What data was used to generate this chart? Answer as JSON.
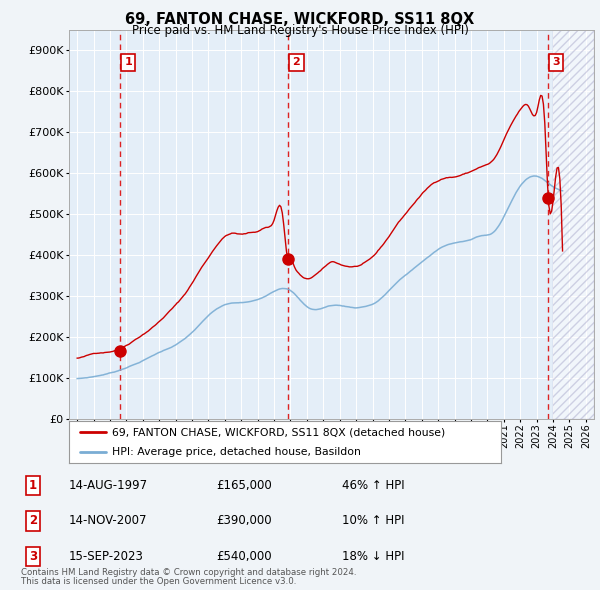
{
  "title": "69, FANTON CHASE, WICKFORD, SS11 8QX",
  "subtitle": "Price paid vs. HM Land Registry's House Price Index (HPI)",
  "legend_line1": "69, FANTON CHASE, WICKFORD, SS11 8QX (detached house)",
  "legend_line2": "HPI: Average price, detached house, Basildon",
  "footnote1": "Contains HM Land Registry data © Crown copyright and database right 2024.",
  "footnote2": "This data is licensed under the Open Government Licence v3.0.",
  "sale_points": [
    {
      "num": 1,
      "date": "14-AUG-1997",
      "price": 165000,
      "pct": "46%",
      "dir": "↑",
      "x": 1997.617
    },
    {
      "num": 2,
      "date": "14-NOV-2007",
      "price": 390000,
      "pct": "10%",
      "dir": "↑",
      "x": 2007.872
    },
    {
      "num": 3,
      "date": "15-SEP-2023",
      "price": 540000,
      "pct": "18%",
      "dir": "↓",
      "x": 2023.708
    }
  ],
  "hpi_color": "#7aadd4",
  "price_color": "#cc0000",
  "background_color": "#f0f4f8",
  "plot_bg": "#e4eef8",
  "grid_color": "#c8d8e8",
  "ylim": [
    0,
    950000
  ],
  "xlim_start": 1994.5,
  "xlim_end": 2026.5,
  "yticks": [
    0,
    100000,
    200000,
    300000,
    400000,
    500000,
    600000,
    700000,
    800000,
    900000
  ],
  "ytick_labels": [
    "£0",
    "£100K",
    "£200K",
    "£300K",
    "£400K",
    "£500K",
    "£600K",
    "£700K",
    "£800K",
    "£900K"
  ],
  "hpi_anchors_x": [
    1995.0,
    1995.5,
    1996.0,
    1996.5,
    1997.0,
    1997.5,
    1998.0,
    1998.5,
    1999.0,
    1999.5,
    2000.0,
    2000.5,
    2001.0,
    2001.5,
    2002.0,
    2002.5,
    2003.0,
    2003.5,
    2004.0,
    2004.5,
    2005.0,
    2005.5,
    2006.0,
    2006.5,
    2007.0,
    2007.5,
    2008.0,
    2008.5,
    2009.0,
    2009.5,
    2010.0,
    2010.5,
    2011.0,
    2011.5,
    2012.0,
    2012.5,
    2013.0,
    2013.5,
    2014.0,
    2014.5,
    2015.0,
    2015.5,
    2016.0,
    2016.5,
    2017.0,
    2017.5,
    2018.0,
    2018.5,
    2019.0,
    2019.5,
    2020.0,
    2020.5,
    2021.0,
    2021.5,
    2022.0,
    2022.5,
    2023.0,
    2023.5,
    2024.0,
    2024.5
  ],
  "hpi_anchors_y": [
    98000,
    100000,
    103000,
    107000,
    112000,
    118000,
    126000,
    134000,
    143000,
    153000,
    163000,
    172000,
    182000,
    195000,
    212000,
    232000,
    252000,
    268000,
    278000,
    282000,
    283000,
    285000,
    290000,
    300000,
    312000,
    320000,
    315000,
    295000,
    275000,
    268000,
    272000,
    278000,
    278000,
    275000,
    273000,
    276000,
    282000,
    295000,
    315000,
    335000,
    352000,
    368000,
    385000,
    400000,
    415000,
    425000,
    430000,
    435000,
    440000,
    448000,
    450000,
    462000,
    495000,
    535000,
    570000,
    590000,
    595000,
    585000,
    570000,
    560000
  ],
  "red_anchors_x": [
    1995.0,
    1995.5,
    1996.0,
    1996.5,
    1997.0,
    1997.5,
    1998.0,
    1998.5,
    1999.0,
    1999.5,
    2000.0,
    2000.5,
    2001.0,
    2001.5,
    2002.0,
    2002.5,
    2003.0,
    2003.5,
    2004.0,
    2004.5,
    2005.0,
    2005.5,
    2006.0,
    2006.5,
    2007.0,
    2007.5,
    2007.872,
    2008.0,
    2008.2,
    2008.5,
    2009.0,
    2009.5,
    2010.0,
    2010.5,
    2011.0,
    2011.5,
    2012.0,
    2012.5,
    2013.0,
    2013.5,
    2014.0,
    2014.5,
    2015.0,
    2015.5,
    2016.0,
    2016.5,
    2017.0,
    2017.5,
    2018.0,
    2018.5,
    2019.0,
    2019.5,
    2020.0,
    2020.5,
    2021.0,
    2021.5,
    2022.0,
    2022.5,
    2023.0,
    2023.5,
    2023.708,
    2024.0,
    2024.5
  ],
  "red_anchors_y": [
    148000,
    152000,
    158000,
    162000,
    165000,
    172000,
    182000,
    196000,
    210000,
    225000,
    242000,
    262000,
    282000,
    305000,
    335000,
    368000,
    398000,
    428000,
    450000,
    458000,
    455000,
    458000,
    462000,
    472000,
    490000,
    508000,
    390000,
    395000,
    380000,
    360000,
    345000,
    355000,
    370000,
    385000,
    380000,
    375000,
    375000,
    382000,
    395000,
    418000,
    445000,
    475000,
    500000,
    525000,
    548000,
    568000,
    582000,
    590000,
    592000,
    598000,
    605000,
    615000,
    622000,
    640000,
    680000,
    720000,
    752000,
    760000,
    745000,
    720000,
    540000,
    530000,
    520000
  ]
}
